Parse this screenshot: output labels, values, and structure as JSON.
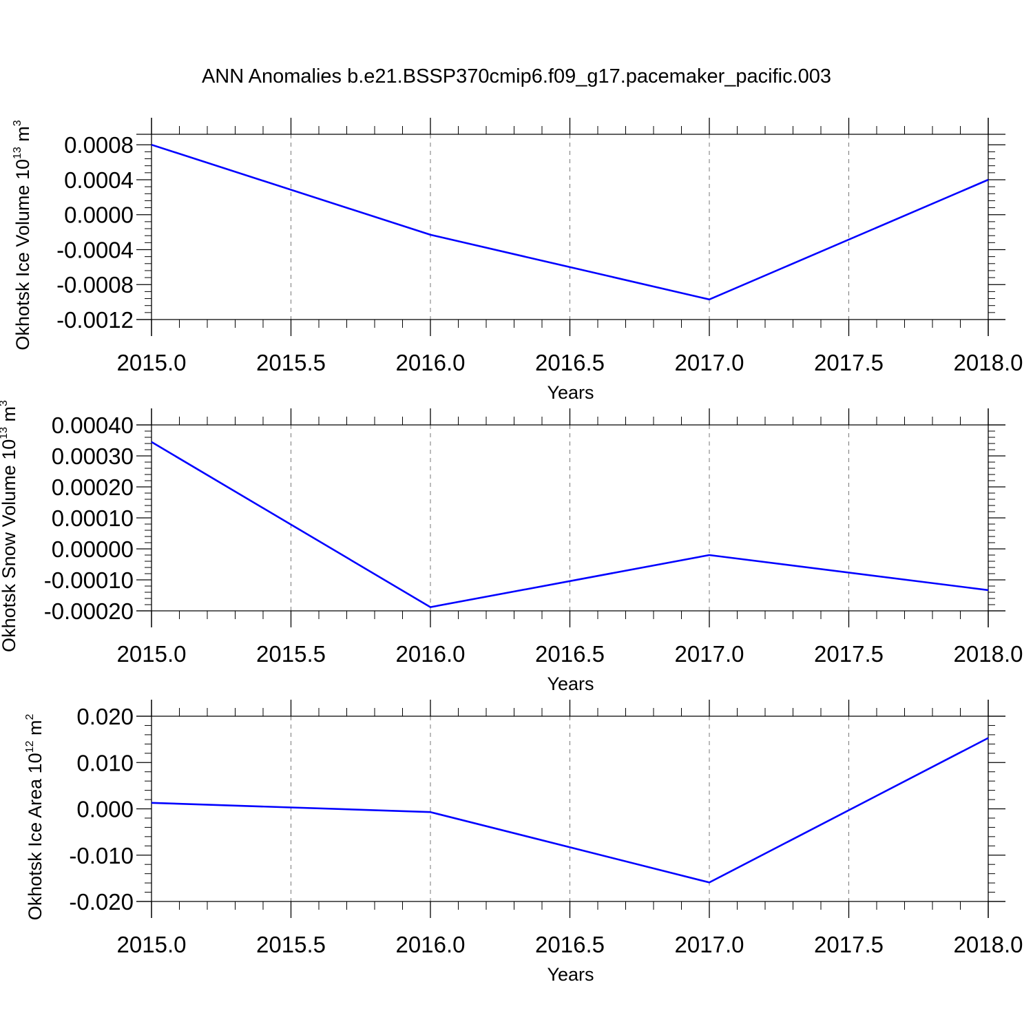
{
  "figure": {
    "title": "ANN Anomalies b.e21.BSSP370cmip6.f09_g17.pacemaker_pacific.003"
  },
  "chart_data": [
    {
      "type": "line",
      "title": "",
      "xlabel": "Years",
      "ylabel": {
        "main": "Okhotsk Ice Volume 10",
        "exp": "13",
        "unit": " m",
        "unit_exp": "3"
      },
      "xlim": [
        2015.0,
        2018.0
      ],
      "ylim": [
        -0.0012,
        0.00092
      ],
      "x_ticks": [
        2015.0,
        2015.5,
        2016.0,
        2016.5,
        2017.0,
        2017.5,
        2018.0
      ],
      "x_tick_labels": [
        "2015.0",
        "2015.5",
        "2016.0",
        "2016.5",
        "2017.0",
        "2017.5",
        "2018.0"
      ],
      "y_ticks": [
        0.0008,
        0.0004,
        0.0,
        -0.0004,
        -0.0008,
        -0.0012
      ],
      "y_tick_labels": [
        "0.0008",
        "0.0004",
        "0.0000",
        "-0.0004",
        "-0.0008",
        "-0.0012"
      ],
      "grid": "vertical dashed",
      "series": [
        {
          "color": "#0000ff",
          "x": [
            2015,
            2016,
            2017,
            2018
          ],
          "y": [
            0.0008,
            -0.00023,
            -0.00097,
            0.0004
          ]
        }
      ]
    },
    {
      "type": "line",
      "title": "",
      "xlabel": "Years",
      "ylabel": {
        "main": "Okhotsk Snow Volume 10",
        "exp": "13",
        "unit": " m",
        "unit_exp": "3"
      },
      "xlim": [
        2015.0,
        2018.0
      ],
      "ylim": [
        -0.0002,
        0.0004
      ],
      "x_ticks": [
        2015.0,
        2015.5,
        2016.0,
        2016.5,
        2017.0,
        2017.5,
        2018.0
      ],
      "x_tick_labels": [
        "2015.0",
        "2015.5",
        "2016.0",
        "2016.5",
        "2017.0",
        "2017.5",
        "2018.0"
      ],
      "y_ticks": [
        0.0004,
        0.0003,
        0.0002,
        0.0001,
        0.0,
        -0.0001,
        -0.0002
      ],
      "y_tick_labels": [
        "0.00040",
        "0.00030",
        "0.00020",
        "0.00010",
        "0.00000",
        "-0.00010",
        "-0.00020"
      ],
      "grid": "vertical dashed",
      "series": [
        {
          "color": "#0000ff",
          "x": [
            2015,
            2016,
            2017,
            2018
          ],
          "y": [
            0.000345,
            -0.000188,
            -2e-05,
            -0.000133
          ]
        }
      ]
    },
    {
      "type": "line",
      "title": "",
      "xlabel": "Years",
      "ylabel": {
        "main": "Okhotsk Ice Area 10",
        "exp": "12",
        "unit": " m",
        "unit_exp": "2"
      },
      "xlim": [
        2015.0,
        2018.0
      ],
      "ylim": [
        -0.02,
        0.02
      ],
      "x_ticks": [
        2015.0,
        2015.5,
        2016.0,
        2016.5,
        2017.0,
        2017.5,
        2018.0
      ],
      "x_tick_labels": [
        "2015.0",
        "2015.5",
        "2016.0",
        "2016.5",
        "2017.0",
        "2017.5",
        "2018.0"
      ],
      "y_ticks": [
        0.02,
        0.01,
        0.0,
        -0.01,
        -0.02
      ],
      "y_tick_labels": [
        "0.020",
        "0.010",
        "0.000",
        "-0.010",
        "-0.020"
      ],
      "grid": "vertical dashed",
      "series": [
        {
          "color": "#0000ff",
          "x": [
            2015,
            2016,
            2017,
            2018
          ],
          "y": [
            0.0013,
            -0.0007,
            -0.0159,
            0.0153
          ]
        }
      ]
    }
  ]
}
